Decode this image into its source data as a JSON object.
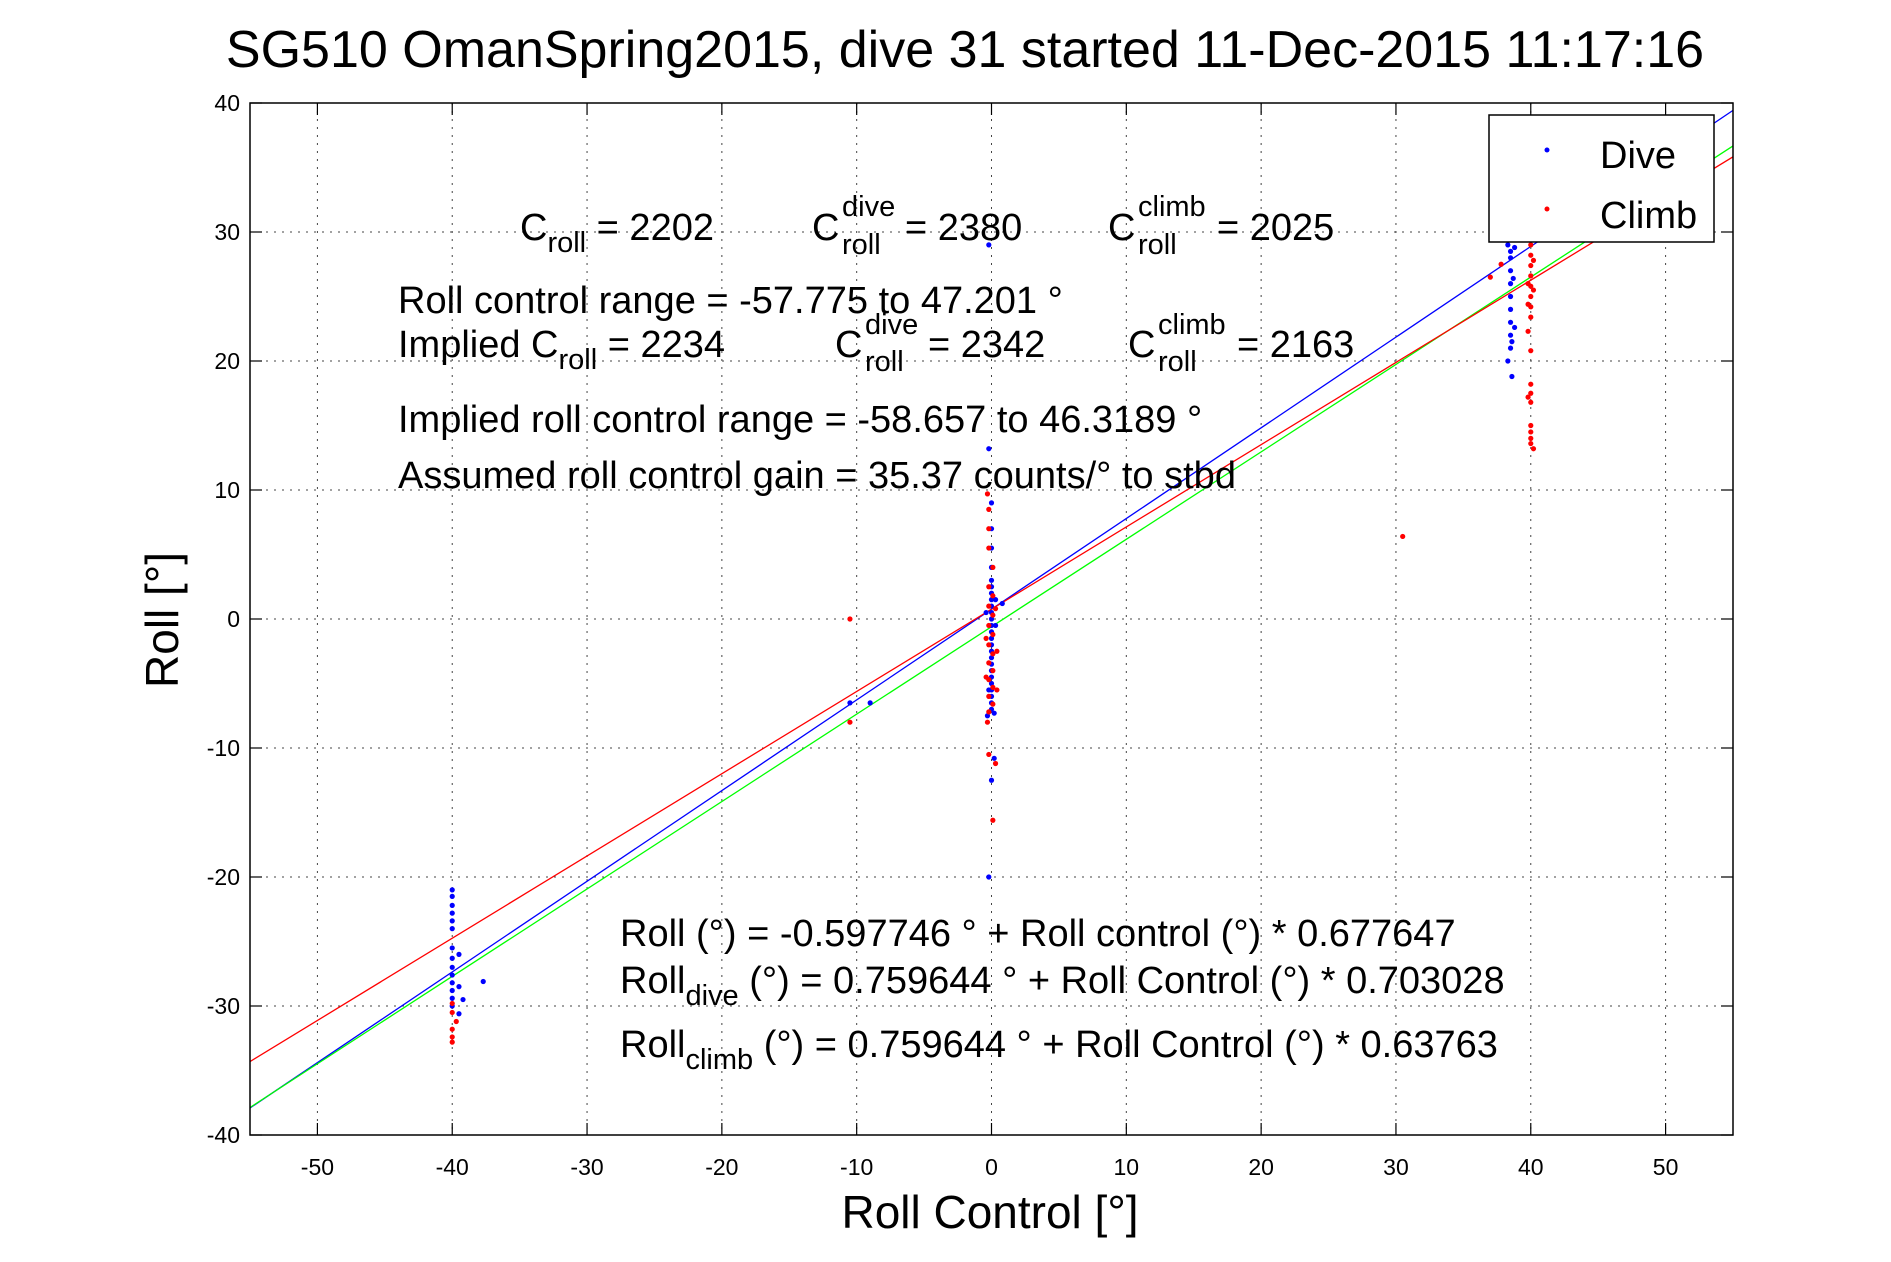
{
  "chart_data": {
    "type": "scatter",
    "title": "SG510 OmanSpring2015, dive 31 started 11-Dec-2015 11:17:16",
    "xlabel": "Roll Control [°]",
    "ylabel": "Roll [°]",
    "xlim": [
      -55,
      55
    ],
    "ylim": [
      -40,
      40
    ],
    "xticks": [
      -50,
      -40,
      -30,
      -20,
      -10,
      0,
      10,
      20,
      30,
      40,
      50
    ],
    "yticks": [
      -40,
      -30,
      -20,
      -10,
      0,
      10,
      20,
      30,
      40
    ],
    "grid": true,
    "legend_position": "top-right",
    "legend": [
      {
        "label": "Dive",
        "color": "#0000ff",
        "marker": "dot"
      },
      {
        "label": "Climb",
        "color": "#ff0000",
        "marker": "dot"
      }
    ],
    "series": [
      {
        "name": "Dive",
        "color": "#0000ff",
        "points": [
          [
            -40,
            -21
          ],
          [
            -40,
            -21.5
          ],
          [
            -40,
            -22.2
          ],
          [
            -40,
            -22.8
          ],
          [
            -40,
            -23.4
          ],
          [
            -40,
            -24
          ],
          [
            -40,
            -25.5
          ],
          [
            -40,
            -26.3
          ],
          [
            -40,
            -27
          ],
          [
            -40,
            -27.6
          ],
          [
            -40,
            -28.2
          ],
          [
            -40,
            -28.8
          ],
          [
            -40,
            -29.4
          ],
          [
            -40,
            -30
          ],
          [
            -39.5,
            -26
          ],
          [
            -39.5,
            -28.5
          ],
          [
            -39.2,
            -29.5
          ],
          [
            -39.5,
            -30.6
          ],
          [
            -37.7,
            -28.1
          ],
          [
            -10.5,
            -6.5
          ],
          [
            -9,
            -6.5
          ],
          [
            -0.2,
            29
          ],
          [
            -0.2,
            13.2
          ],
          [
            0,
            9
          ],
          [
            0,
            7
          ],
          [
            0,
            5.5
          ],
          [
            0,
            4
          ],
          [
            0,
            3
          ],
          [
            0,
            2.5
          ],
          [
            0,
            2
          ],
          [
            0,
            1.5
          ],
          [
            0,
            1
          ],
          [
            0,
            0.5
          ],
          [
            0,
            0
          ],
          [
            0,
            -0.5
          ],
          [
            0,
            -1
          ],
          [
            0,
            -1.5
          ],
          [
            0,
            -2
          ],
          [
            0,
            -2.5
          ],
          [
            0,
            -3
          ],
          [
            0,
            -3.5
          ],
          [
            0,
            -4
          ],
          [
            0,
            -4.5
          ],
          [
            0,
            -5
          ],
          [
            0,
            -5.5
          ],
          [
            0,
            -6
          ],
          [
            0,
            -6.5
          ],
          [
            0,
            -7
          ],
          [
            -0.3,
            -7.5
          ],
          [
            0.3,
            1.5
          ],
          [
            -0.4,
            0.5
          ],
          [
            0.3,
            -0.5
          ],
          [
            -0.2,
            -5.5
          ],
          [
            0.2,
            -7.3
          ],
          [
            0.2,
            -10.8
          ],
          [
            0,
            -12.5
          ],
          [
            -0.2,
            -20
          ],
          [
            0.8,
            1.2
          ],
          [
            38.3,
            29.5
          ],
          [
            38.3,
            29
          ],
          [
            38.5,
            28.5
          ],
          [
            38.5,
            28
          ],
          [
            38.5,
            27
          ],
          [
            38.5,
            26
          ],
          [
            38.5,
            25
          ],
          [
            38.5,
            24
          ],
          [
            38.5,
            23
          ],
          [
            38.5,
            22
          ],
          [
            38.5,
            21
          ],
          [
            38.3,
            20
          ],
          [
            38.6,
            18.8
          ],
          [
            38.8,
            28.8
          ],
          [
            38.7,
            26.4
          ],
          [
            38.8,
            22.6
          ],
          [
            38.6,
            21.5
          ]
        ]
      },
      {
        "name": "Climb",
        "color": "#ff0000",
        "points": [
          [
            -40,
            -29.8
          ],
          [
            -40,
            -30.5
          ],
          [
            -40,
            -31.8
          ],
          [
            -40,
            -32.4
          ],
          [
            -40,
            -32.8
          ],
          [
            -39.7,
            -31.2
          ],
          [
            -10.5,
            0
          ],
          [
            -10.5,
            -8
          ],
          [
            -0.3,
            9.7
          ],
          [
            -0.2,
            8.5
          ],
          [
            -0.2,
            7
          ],
          [
            -0.2,
            5.5
          ],
          [
            0.1,
            4
          ],
          [
            -0.2,
            2.5
          ],
          [
            0.1,
            1.8
          ],
          [
            -0.2,
            1
          ],
          [
            0.1,
            0.3
          ],
          [
            -0.2,
            -0.5
          ],
          [
            0.1,
            -1.2
          ],
          [
            -0.2,
            -2
          ],
          [
            0.1,
            -2.7
          ],
          [
            -0.2,
            -3.4
          ],
          [
            0.1,
            -4
          ],
          [
            -0.2,
            -4.7
          ],
          [
            0.1,
            -5.3
          ],
          [
            -0.2,
            -6
          ],
          [
            0.1,
            -6.6
          ],
          [
            -0.2,
            -7.2
          ],
          [
            -0.4,
            -1.5
          ],
          [
            0.4,
            -2.5
          ],
          [
            -0.4,
            -4.5
          ],
          [
            0.4,
            -5.5
          ],
          [
            0.3,
            0.8
          ],
          [
            -0.3,
            -8
          ],
          [
            -0.2,
            -10.5
          ],
          [
            0.3,
            -11.2
          ],
          [
            0.1,
            -15.6
          ],
          [
            30.5,
            6.4
          ],
          [
            37,
            26.5
          ],
          [
            37.8,
            27.5
          ],
          [
            39.2,
            29.5
          ],
          [
            40,
            29
          ],
          [
            40,
            28.2
          ],
          [
            40,
            27.4
          ],
          [
            40,
            26.6
          ],
          [
            40,
            25.8
          ],
          [
            40,
            25
          ],
          [
            40,
            24.2
          ],
          [
            40,
            23.4
          ],
          [
            40.2,
            27.8
          ],
          [
            39.8,
            26
          ],
          [
            40.2,
            25.5
          ],
          [
            39.8,
            24.4
          ],
          [
            39.8,
            22.3
          ],
          [
            40,
            20.8
          ],
          [
            40,
            18.2
          ],
          [
            40,
            17.5
          ],
          [
            40,
            16.8
          ],
          [
            40,
            15
          ],
          [
            40,
            14.5
          ],
          [
            40,
            14
          ],
          [
            40,
            13.6
          ],
          [
            40.2,
            13.2
          ],
          [
            39.8,
            17.2
          ]
        ]
      },
      {
        "name": "Dive fit",
        "color": "#0000ff",
        "type": "line",
        "intercept": 0.759644,
        "slope": 0.703028
      },
      {
        "name": "All fit",
        "color": "#00ff00",
        "type": "line",
        "intercept": -0.597746,
        "slope": 0.677647
      },
      {
        "name": "Climb fit",
        "color": "#ff0000",
        "type": "line",
        "intercept": 0.759644,
        "slope": 0.63763
      }
    ],
    "annotations": {
      "c_roll": {
        "base": "C",
        "sub": "roll",
        "rest": " = 2202"
      },
      "c_dive": {
        "base": "C",
        "sup": "dive",
        "sub": "roll",
        "rest": " = 2380"
      },
      "c_climb": {
        "base": "C",
        "sup": "climb",
        "sub": "roll",
        "rest": " = 2025"
      },
      "range": "Roll control range = -57.775 to 47.201 °",
      "implied_prefix": "Implied C",
      "implied_sub": "roll",
      "implied_rest": " = 2234",
      "implied_dive": {
        "base": "C",
        "sup": "dive",
        "sub": "roll",
        "rest": " = 2342"
      },
      "implied_climb": {
        "base": "C",
        "sup": "climb",
        "sub": "roll",
        "rest": " = 2163"
      },
      "implied_range": "Implied roll control range = -58.657 to 46.3189 °",
      "gain": "Assumed roll control gain = 35.37 counts/° to stbd",
      "eq_all": "Roll (°) = -0.597746 ° + Roll control (°) * 0.677647",
      "eq_dive_base": "Roll",
      "eq_dive_sub": "dive",
      "eq_dive_rest": " (°) = 0.759644 ° + Roll Control (°) * 0.703028",
      "eq_climb_base": "Roll",
      "eq_climb_sub": "climb",
      "eq_climb_rest": " (°) = 0.759644 ° + Roll Control (°) * 0.63763"
    }
  }
}
